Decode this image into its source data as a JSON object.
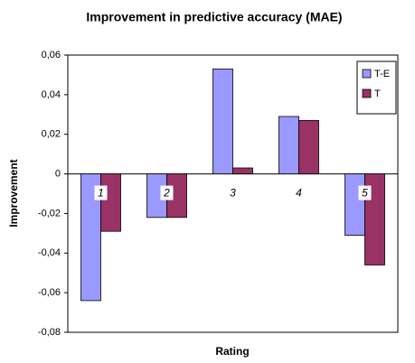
{
  "chart_data": {
    "type": "bar",
    "title": "Improvement in predictive accuracy (MAE)",
    "x_label": "Rating",
    "y_label": "Improvement",
    "categories": [
      "1",
      "2",
      "3",
      "4",
      "5"
    ],
    "series": [
      {
        "name": "T-E",
        "color": "#9999ff",
        "values": [
          -0.064,
          -0.022,
          0.053,
          0.029,
          -0.031
        ]
      },
      {
        "name": "T",
        "color": "#993366",
        "values": [
          -0.029,
          -0.022,
          0.003,
          0.027,
          -0.046
        ]
      }
    ],
    "ylim": [
      -0.08,
      0.06
    ],
    "yticks": [
      {
        "value": -0.08,
        "label": "-0,08"
      },
      {
        "value": -0.06,
        "label": "-0,06"
      },
      {
        "value": -0.04,
        "label": "-0,04"
      },
      {
        "value": -0.02,
        "label": "-0,02"
      },
      0,
      {
        "value": 0.02,
        "label": "0,02"
      },
      {
        "value": 0.04,
        "label": "0,04"
      },
      {
        "value": 0.06,
        "label": "0,06"
      }
    ],
    "legend_position": "upper right"
  }
}
